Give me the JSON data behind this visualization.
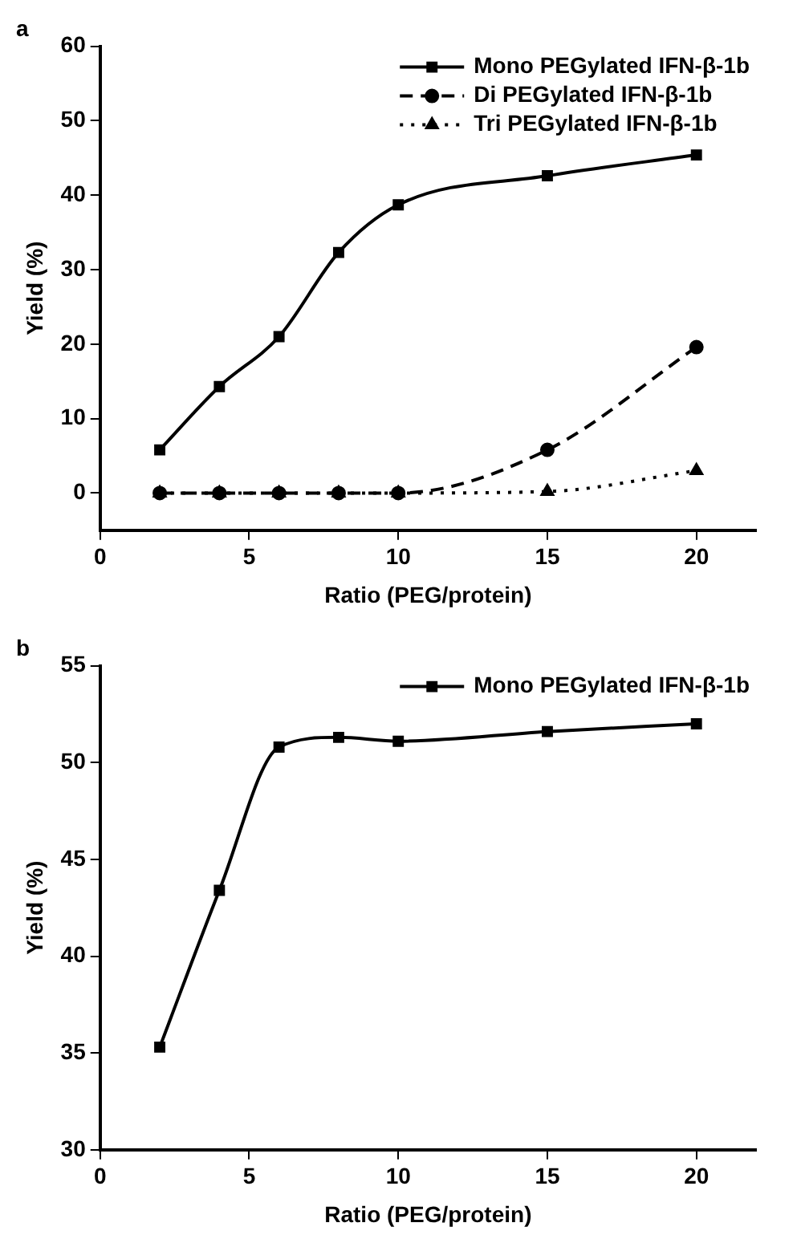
{
  "chart_data": [
    {
      "type": "line",
      "title": "a",
      "xlabel": "Ratio (PEG/protein)",
      "ylabel": "Yield (%)",
      "x": [
        2,
        4,
        6,
        8,
        10,
        15,
        20
      ],
      "xlim": [
        0,
        22
      ],
      "xticks": [
        0,
        5,
        10,
        15,
        20
      ],
      "ylim": [
        -5,
        60
      ],
      "yticks": [
        0,
        10,
        20,
        30,
        40,
        50,
        60
      ],
      "grid": false,
      "legend": "top right",
      "series": [
        {
          "name": "Mono PEGylated IFN-β-1b",
          "color": "#000000",
          "marker": "square",
          "line_style": "solid",
          "values": [
            5.8,
            14.3,
            21,
            32.3,
            38.7,
            42.6,
            45.4
          ]
        },
        {
          "name": "Di PEGylated IFN-β-1b",
          "color": "#000000",
          "marker": "circle",
          "line_style": "dashed",
          "values": [
            0,
            0,
            0,
            0,
            0,
            5.8,
            19.6
          ]
        },
        {
          "name": "Tri PEGylated IFN-β-1b",
          "color": "#000000",
          "marker": "triangle",
          "line_style": "dotted",
          "values": [
            0,
            0,
            0,
            0,
            0,
            0.2,
            3
          ]
        }
      ]
    },
    {
      "type": "line",
      "title": "b",
      "xlabel": "Ratio (PEG/protein)",
      "ylabel": "Yield (%)",
      "x": [
        2,
        4,
        6,
        8,
        10,
        15,
        20
      ],
      "xlim": [
        0,
        22
      ],
      "xticks": [
        0,
        5,
        10,
        15,
        20
      ],
      "ylim": [
        30,
        55
      ],
      "yticks": [
        30,
        35,
        40,
        45,
        50,
        55
      ],
      "grid": false,
      "legend": "top right",
      "series": [
        {
          "name": "Mono PEGylated IFN-β-1b",
          "color": "#000000",
          "marker": "square",
          "line_style": "solid",
          "values": [
            35.3,
            43.4,
            50.8,
            51.3,
            51.1,
            51.6,
            52
          ]
        }
      ]
    }
  ]
}
